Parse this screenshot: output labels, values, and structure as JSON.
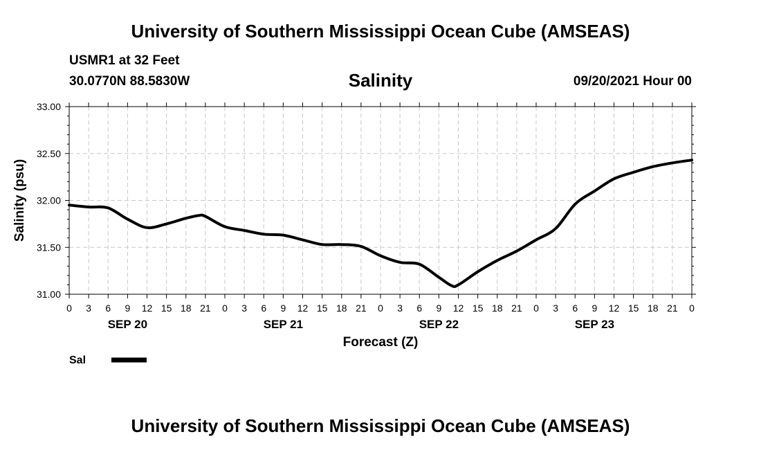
{
  "header": {
    "title": "University of Southern Mississippi Ocean Cube (AMSEAS)",
    "station": "USMR1 at 32 Feet",
    "coords": "30.0770N  88.5830W",
    "variable": "Salinity",
    "datetime": "09/20/2021 Hour 00"
  },
  "footer": {
    "title": "University of Southern Mississippi Ocean Cube (AMSEAS)"
  },
  "chart_data": {
    "type": "line",
    "title": "Salinity",
    "xlabel": "Forecast (Z)",
    "ylabel": "Salinity (psu)",
    "ylim": [
      31.0,
      33.0
    ],
    "yticks": [
      "31.00",
      "31.50",
      "32.00",
      "32.50",
      "33.00"
    ],
    "xlim": [
      0,
      96
    ],
    "xtick_labels": [
      "0",
      "3",
      "6",
      "9",
      "12",
      "15",
      "18",
      "21",
      "0",
      "3",
      "6",
      "9",
      "12",
      "15",
      "18",
      "21",
      "0",
      "3",
      "6",
      "9",
      "12",
      "15",
      "18",
      "21",
      "0",
      "3",
      "6",
      "9",
      "12",
      "15",
      "18",
      "21",
      "0"
    ],
    "day_labels": [
      {
        "label": "SEP 20",
        "hour": 9
      },
      {
        "label": "SEP 21",
        "hour": 33
      },
      {
        "label": "SEP 22",
        "hour": 57
      },
      {
        "label": "SEP 23",
        "hour": 81
      }
    ],
    "grid": true,
    "legend": [
      {
        "name": "Sal",
        "position": "bottom-left"
      }
    ],
    "series": [
      {
        "name": "Sal",
        "x": [
          0,
          3,
          6,
          9,
          12,
          15,
          18,
          20,
          21,
          24,
          27,
          30,
          33,
          36,
          39,
          42,
          45,
          48,
          51,
          54,
          57,
          59,
          60,
          63,
          66,
          69,
          72,
          75,
          78,
          81,
          84,
          87,
          90,
          93,
          96
        ],
        "values": [
          31.95,
          31.93,
          31.92,
          31.8,
          31.71,
          31.75,
          31.81,
          31.84,
          31.83,
          31.72,
          31.68,
          31.64,
          31.63,
          31.58,
          31.53,
          31.53,
          31.51,
          31.41,
          31.34,
          31.32,
          31.18,
          31.09,
          31.1,
          31.24,
          31.36,
          31.46,
          31.58,
          31.7,
          31.96,
          32.1,
          32.23,
          32.3,
          32.36,
          32.4,
          32.43
        ]
      }
    ]
  }
}
